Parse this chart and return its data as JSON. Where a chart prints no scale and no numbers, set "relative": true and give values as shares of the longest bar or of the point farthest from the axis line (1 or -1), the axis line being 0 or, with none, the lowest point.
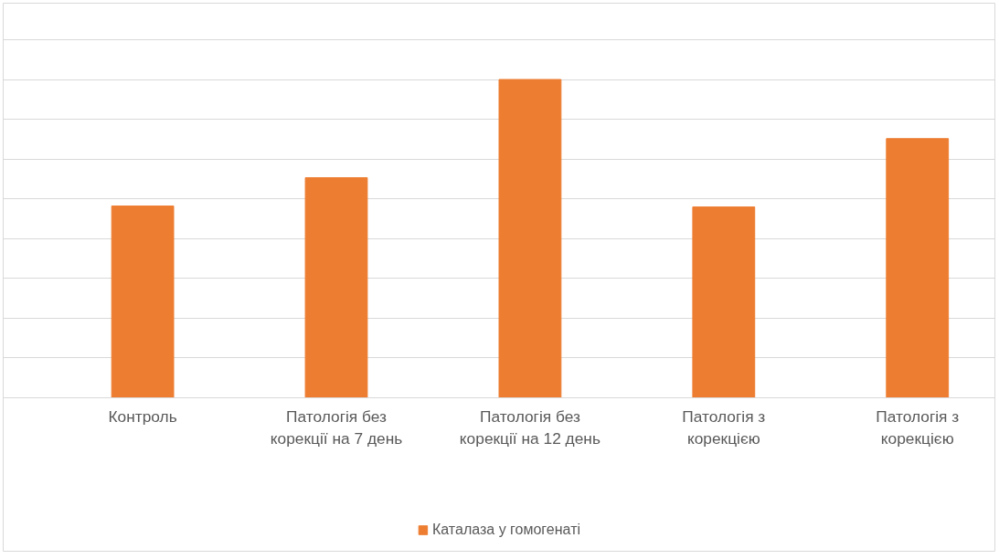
{
  "chart_data": {
    "type": "bar",
    "relative": true,
    "categories": [
      "Контроль",
      "Патологія без\nкорекції на 7 день",
      "Патологія без\nкорекції на 12 день",
      "Патологія з\nкорекцією",
      "Патологія з\nкорекцією"
    ],
    "series": [
      {
        "name": "Каталаза у гомогенаті",
        "color": "#ed7d31",
        "values": [
          0.602,
          0.691,
          1.0,
          0.599,
          0.814
        ]
      }
    ],
    "grid": "y",
    "legend": "bottom"
  }
}
